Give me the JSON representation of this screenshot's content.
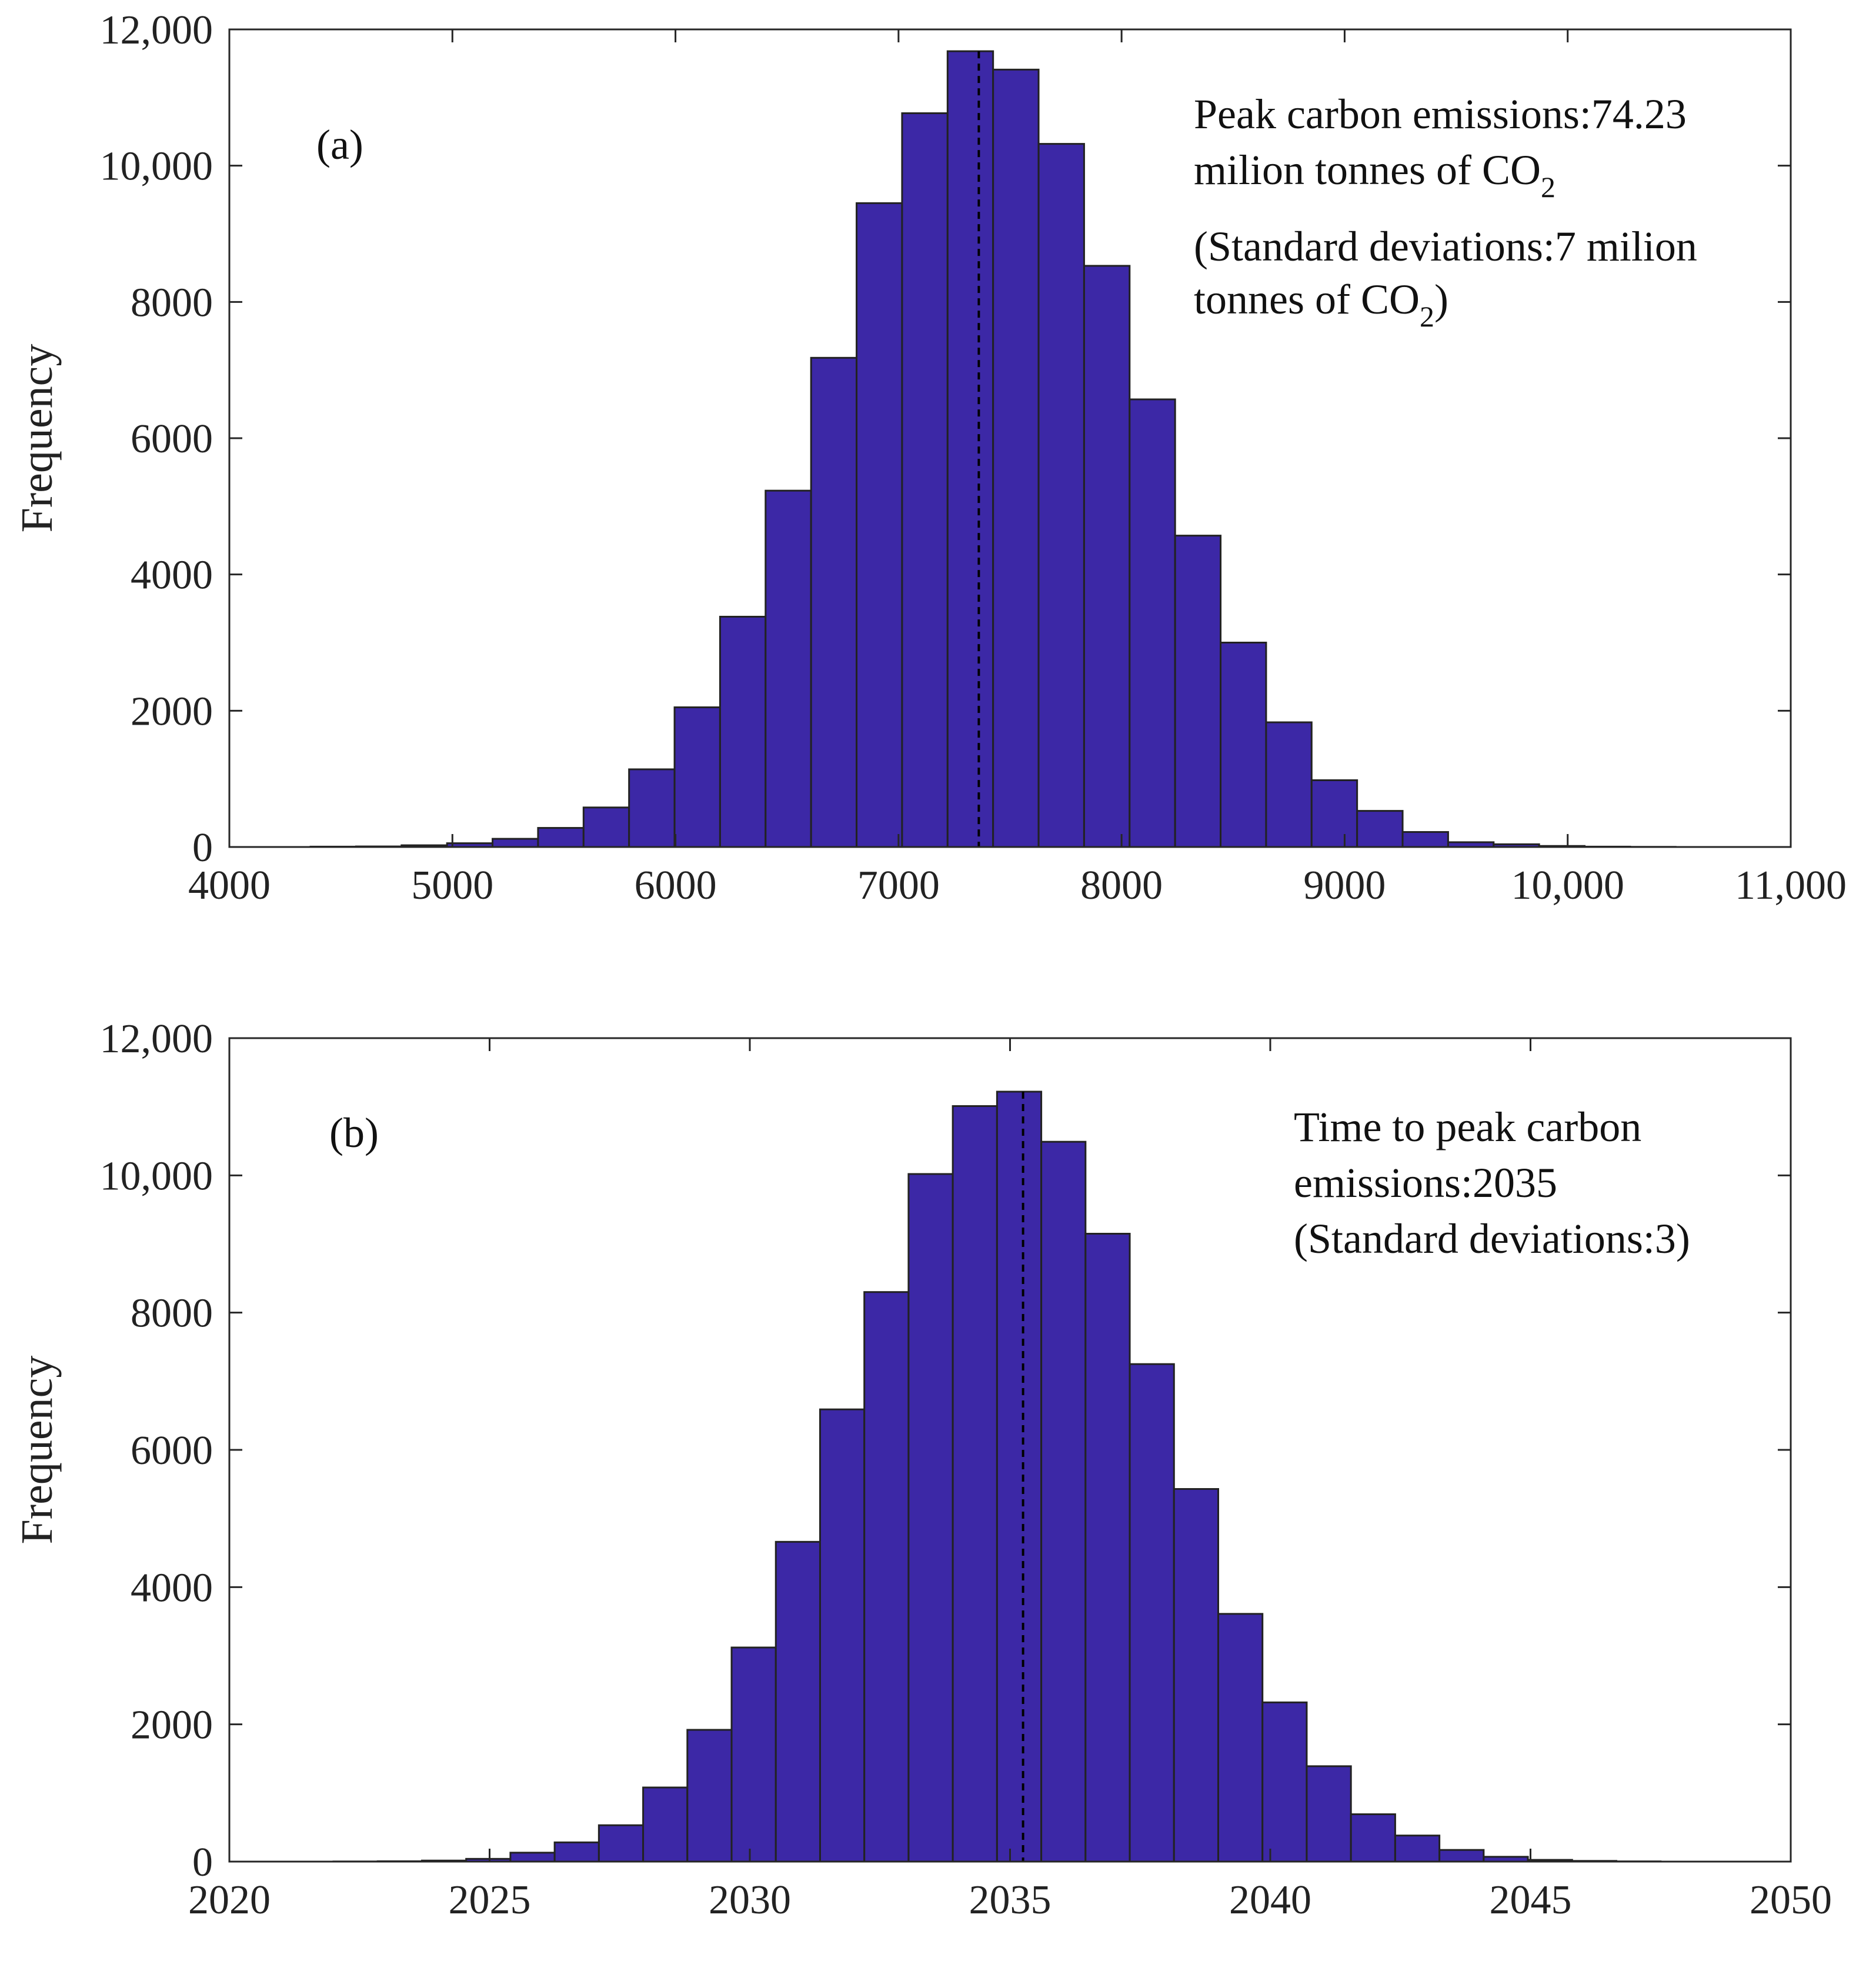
{
  "colors": {
    "bar_fill": "#3c28a6",
    "bar_edge": "#222222",
    "axis": "#262626"
  },
  "chart_data": [
    {
      "type": "bar",
      "subtype": "histogram",
      "panel_label": "(a)",
      "ylabel": "Frequency",
      "xlabel": "",
      "xlim": [
        4000,
        11000
      ],
      "ylim": [
        0,
        12000
      ],
      "xticks": [
        4000,
        5000,
        6000,
        7000,
        8000,
        9000,
        10000,
        11000
      ],
      "xtick_labels": [
        "4000",
        "5000",
        "6000",
        "7000",
        "8000",
        "9000",
        "10,000",
        "11,000"
      ],
      "yticks": [
        0,
        2000,
        4000,
        6000,
        8000,
        10000,
        12000
      ],
      "ytick_labels": [
        "0",
        "2000",
        "4000",
        "6000",
        "8000",
        "10,000",
        "12,000"
      ],
      "bin_edges": [
        4364,
        4568,
        4772,
        4976,
        5180,
        5384,
        5588,
        5792,
        5996,
        6200,
        6404,
        6608,
        6812,
        7016,
        7220,
        7424,
        7628,
        7832,
        8036,
        8240,
        8444,
        8648,
        8852,
        9056,
        9260,
        9464,
        9668,
        9872,
        10076,
        10280,
        10484
      ],
      "values": [
        5,
        8,
        25,
        55,
        120,
        280,
        580,
        1140,
        2050,
        3380,
        5230,
        7180,
        9450,
        10770,
        11680,
        11410,
        10320,
        8530,
        6570,
        4570,
        3000,
        1830,
        980,
        530,
        220,
        70,
        40,
        15,
        5,
        2
      ],
      "mean_line": 7360,
      "annotation": {
        "line1": "Peak carbon emissions:74.23",
        "line2": "milion tonnes of CO",
        "line2_sub": "2",
        "line3": "(Standard deviations:7 milion",
        "line4": "tonnes of CO",
        "line4_sub": "2",
        "line4_end": ")"
      }
    },
    {
      "type": "bar",
      "subtype": "histogram",
      "panel_label": "(b)",
      "ylabel": "Frequency",
      "xlabel": "",
      "xlim": [
        2020,
        2050
      ],
      "ylim": [
        0,
        12000
      ],
      "xticks": [
        2020,
        2025,
        2030,
        2035,
        2040,
        2045,
        2050
      ],
      "xtick_labels": [
        "2020",
        "2025",
        "2030",
        "2035",
        "2040",
        "2045",
        "2050"
      ],
      "yticks": [
        0,
        2000,
        4000,
        6000,
        8000,
        10000,
        12000
      ],
      "ytick_labels": [
        "0",
        "2000",
        "4000",
        "6000",
        "8000",
        "10,000",
        "12,000"
      ],
      "bin_edges": [
        2022.0,
        2022.85,
        2023.7,
        2024.55,
        2025.4,
        2026.25,
        2027.1,
        2027.95,
        2028.8,
        2029.65,
        2030.5,
        2031.35,
        2032.2,
        2033.05,
        2033.9,
        2034.75,
        2035.6,
        2036.45,
        2037.3,
        2038.15,
        2039.0,
        2039.85,
        2040.7,
        2041.55,
        2042.4,
        2043.25,
        2044.1,
        2044.95,
        2045.8,
        2046.65,
        2047.5
      ],
      "values": [
        2,
        5,
        15,
        40,
        130,
        280,
        530,
        1080,
        1920,
        3120,
        4660,
        6590,
        8300,
        10020,
        11010,
        11220,
        10490,
        9150,
        7250,
        5430,
        3610,
        2320,
        1390,
        690,
        380,
        170,
        70,
        25,
        10,
        3
      ],
      "mean_line": 2035.25,
      "annotation": {
        "line1": "Time to peak carbon",
        "line2": "emissions:2035",
        "line3": "(Standard deviations:3)"
      }
    }
  ]
}
